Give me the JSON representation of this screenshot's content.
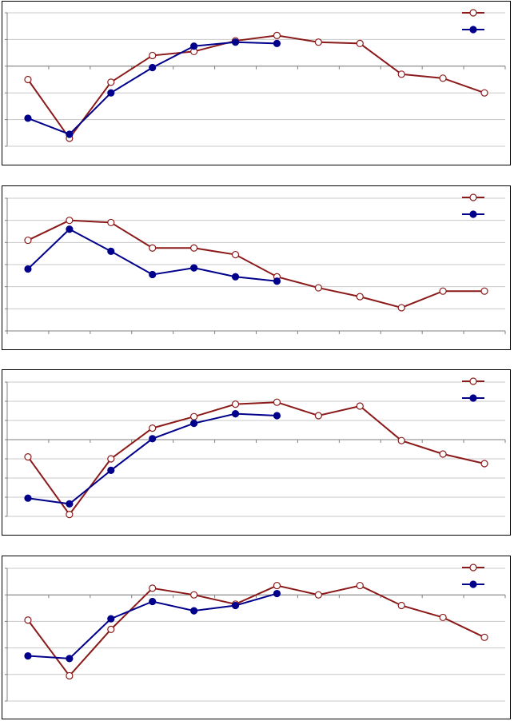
{
  "colors": {
    "series1": "#8b1a1a",
    "series2": "#00008b",
    "grid": "#c8c8c8",
    "axis": "#808080",
    "frame": "#000000"
  },
  "chart_data": [
    {
      "type": "line",
      "x": [
        1,
        2,
        3,
        4,
        5,
        6,
        7,
        8,
        9,
        10,
        11,
        12
      ],
      "ylim": [
        -3,
        2
      ],
      "grid_lines": 6,
      "zero_line": 0,
      "legend": "top-right",
      "grid": true,
      "series": [
        {
          "marker": "open-circle",
          "values": [
            -0.5,
            -2.7,
            -0.6,
            0.4,
            0.55,
            0.95,
            1.15,
            0.9,
            0.85,
            -0.3,
            -0.45,
            -1.0
          ]
        },
        {
          "marker": "filled-circle",
          "values": [
            -1.95,
            -2.55,
            -1.0,
            -0.05,
            0.75,
            0.9,
            0.85,
            null,
            null,
            null,
            null,
            null
          ]
        }
      ]
    },
    {
      "type": "line",
      "x": [
        1,
        2,
        3,
        4,
        5,
        6,
        7,
        8,
        9,
        10,
        11,
        12
      ],
      "ylim": [
        0,
        6
      ],
      "grid_lines": 7,
      "legend": "top-right",
      "grid": true,
      "series": [
        {
          "marker": "open-circle",
          "values": [
            4.1,
            5.0,
            4.9,
            3.75,
            3.75,
            3.45,
            2.45,
            1.95,
            1.55,
            1.05,
            1.8,
            1.8
          ]
        },
        {
          "marker": "filled-circle",
          "values": [
            2.8,
            4.6,
            3.6,
            2.55,
            2.85,
            2.45,
            2.25,
            null,
            null,
            null,
            null,
            null
          ]
        }
      ]
    },
    {
      "type": "line",
      "x": [
        1,
        2,
        3,
        4,
        5,
        6,
        7,
        8,
        9,
        10,
        11,
        12
      ],
      "ylim": [
        -4,
        3
      ],
      "grid_lines": 8,
      "zero_line": 0,
      "legend": "top-right",
      "grid": true,
      "series": [
        {
          "marker": "open-circle",
          "values": [
            -0.9,
            -3.9,
            -1.0,
            0.6,
            1.2,
            1.85,
            1.95,
            1.25,
            1.75,
            -0.05,
            -0.75,
            -1.25
          ]
        },
        {
          "marker": "filled-circle",
          "values": [
            -3.05,
            -3.35,
            -1.6,
            0.05,
            0.85,
            1.35,
            1.25,
            null,
            null,
            null,
            null,
            null
          ]
        }
      ]
    },
    {
      "type": "line",
      "x": [
        1,
        2,
        3,
        4,
        5,
        6,
        7,
        8,
        9,
        10,
        11,
        12
      ],
      "ylim": [
        -4,
        1
      ],
      "grid_lines": 6,
      "zero_line": 0,
      "legend": "top-right",
      "grid": true,
      "series": [
        {
          "marker": "open-circle",
          "values": [
            -0.95,
            -3.05,
            -1.3,
            0.25,
            0.0,
            -0.35,
            0.35,
            0.0,
            0.35,
            -0.4,
            -0.85,
            -1.6
          ]
        },
        {
          "marker": "filled-circle",
          "values": [
            -2.3,
            -2.4,
            -0.9,
            -0.25,
            -0.6,
            -0.4,
            0.05,
            null,
            null,
            null,
            null,
            null
          ]
        }
      ]
    }
  ]
}
